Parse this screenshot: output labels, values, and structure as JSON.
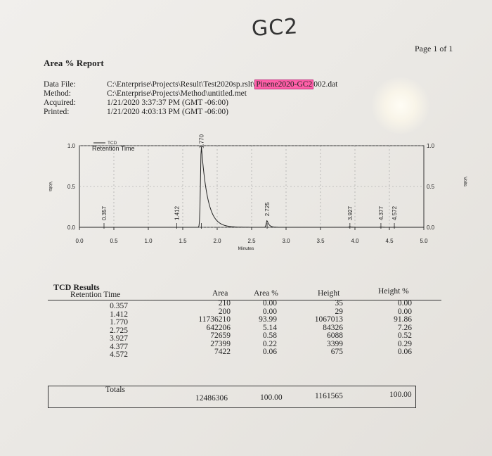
{
  "header": {
    "handwritten": "GC2",
    "page": "Page 1 of 1",
    "report_title": "Area % Report"
  },
  "meta": {
    "data_file_label": "Data File:",
    "method_label": "Method:",
    "acquired_label": "Acquired:",
    "printed_label": "Printed:",
    "data_file_prefix": "C:\\Enterprise\\Projects\\Result\\Test2020sp.rslt\\",
    "data_file_highlight": "Pinene2020-GC2",
    "data_file_suffix": "002.dat",
    "method_value": "C:\\Enterprise\\Projects\\Method\\untitled.met",
    "acquired_value": "1/21/2020 3:37:37 PM (GMT -06:00)",
    "printed_value": "1/21/2020 4:03:13 PM (GMT -06:00)"
  },
  "chart_data": {
    "type": "line",
    "legend": [
      "TCD",
      "Retention Time"
    ],
    "xlabel": "Minutes",
    "ylabel_left": "Volts",
    "ylabel_right": "Volts",
    "xlim": [
      0.0,
      5.0
    ],
    "ylim": [
      0.0,
      1.0
    ],
    "x_ticks": [
      "0.0",
      "0.5",
      "1.0",
      "1.5",
      "2.0",
      "2.5",
      "3.0",
      "3.5",
      "4.0",
      "4.5",
      "5.0"
    ],
    "y_ticks": [
      "0.0",
      "0.5",
      "1.0"
    ],
    "grid": true,
    "peaks": [
      {
        "rt": 0.357,
        "label": "0.357",
        "height": 0.0
      },
      {
        "rt": 1.412,
        "label": "1.412",
        "height": 0.0
      },
      {
        "rt": 1.77,
        "label": "1.770",
        "height": 1.067
      },
      {
        "rt": 2.725,
        "label": "2.725",
        "height": 0.084
      },
      {
        "rt": 3.927,
        "label": "3.927",
        "height": 0.006
      },
      {
        "rt": 4.377,
        "label": "4.377",
        "height": 0.003
      },
      {
        "rt": 4.572,
        "label": "4.572",
        "height": 0.001
      }
    ]
  },
  "results": {
    "title": "TCD Results",
    "headers": [
      "Retention Time",
      "Area",
      "Area %",
      "Height",
      "Height %"
    ],
    "rows": [
      {
        "rt": "0.357",
        "area": "210",
        "area_pct": "0.00",
        "height": "35",
        "height_pct": "0.00"
      },
      {
        "rt": "1.412",
        "area": "200",
        "area_pct": "0.00",
        "height": "29",
        "height_pct": "0.00"
      },
      {
        "rt": "1.770",
        "area": "11736210",
        "area_pct": "93.99",
        "height": "1067013",
        "height_pct": "91.86"
      },
      {
        "rt": "2.725",
        "area": "642206",
        "area_pct": "5.14",
        "height": "84326",
        "height_pct": "7.26"
      },
      {
        "rt": "3.927",
        "area": "72659",
        "area_pct": "0.58",
        "height": "6088",
        "height_pct": "0.52"
      },
      {
        "rt": "4.377",
        "area": "27399",
        "area_pct": "0.22",
        "height": "3399",
        "height_pct": "0.29"
      },
      {
        "rt": "4.572",
        "area": "7422",
        "area_pct": "0.06",
        "height": "675",
        "height_pct": "0.06"
      }
    ],
    "totals": {
      "label": "Totals",
      "area": "12486306",
      "area_pct": "100.00",
      "height": "1161565",
      "height_pct": "100.00"
    }
  }
}
